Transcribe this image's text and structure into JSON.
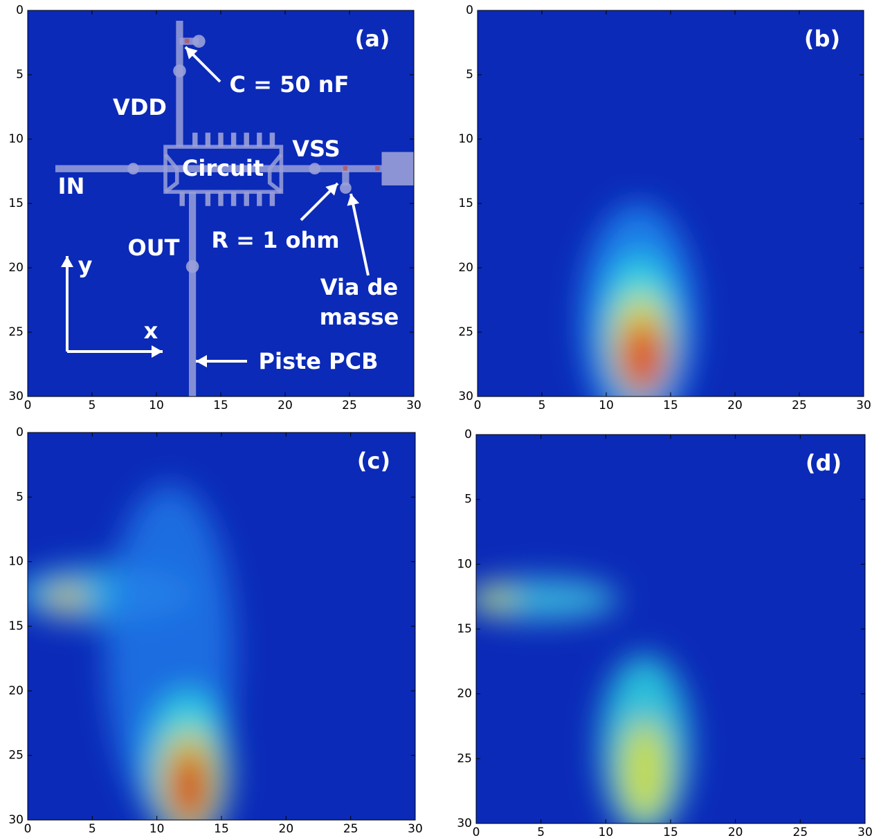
{
  "chart_data": [
    {
      "type": "heatmap",
      "title": "(a)",
      "xlim": [
        0,
        30
      ],
      "ylim": [
        30,
        0
      ],
      "xticks": [
        0,
        5,
        10,
        15,
        20,
        25,
        30
      ],
      "yticks": [
        0,
        5,
        10,
        15,
        20,
        25,
        30
      ],
      "annotations": [
        "C = 50 nF",
        "VDD",
        "VSS",
        "Circuit",
        "IN",
        "OUT",
        "R = 1 ohm",
        "Via de",
        "masse",
        "Piste PCB",
        "y",
        "x"
      ]
    },
    {
      "type": "heatmap",
      "title": "(b)",
      "xlim": [
        0,
        30
      ],
      "ylim": [
        30,
        0
      ],
      "xticks": [
        0,
        5,
        10,
        15,
        20,
        25,
        30
      ],
      "yticks": [
        0,
        5,
        10,
        15,
        20,
        25,
        30
      ]
    },
    {
      "type": "heatmap",
      "title": "(c)",
      "xlim": [
        0,
        30
      ],
      "ylim": [
        30,
        0
      ],
      "xticks": [
        0,
        5,
        10,
        15,
        20,
        25,
        30
      ],
      "yticks": [
        0,
        5,
        10,
        15,
        20,
        25,
        30
      ]
    },
    {
      "type": "heatmap",
      "title": "(d)",
      "xlim": [
        0,
        30
      ],
      "ylim": [
        30,
        0
      ],
      "xticks": [
        0,
        5,
        10,
        15,
        20,
        25,
        30
      ],
      "yticks": [
        0,
        5,
        10,
        15,
        20,
        25,
        30
      ]
    }
  ]
}
